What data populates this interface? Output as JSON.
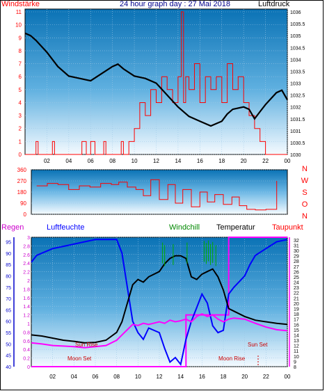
{
  "chart_data": [
    {
      "type": "line",
      "title": "24 hour graph day : 27 Mai 2018",
      "left_label": "Windstärke",
      "right_label": "Luftdruck",
      "x_ticks": [
        "02",
        "04",
        "06",
        "08",
        "10",
        "12",
        "14",
        "16",
        "18",
        "20",
        "22",
        "00"
      ],
      "y_left_ticks": [
        "0",
        "1",
        "2",
        "3",
        "4",
        "5",
        "6",
        "7",
        "8",
        "9",
        "10",
        "11"
      ],
      "y_left_range": [
        0,
        11
      ],
      "y_right_ticks": [
        "1030",
        "1030.5",
        "1031",
        "1031.5",
        "1032",
        "1032.5",
        "1033",
        "1033.5",
        "1034",
        "1034.5",
        "1035",
        "1035.5",
        "1036"
      ],
      "y_right_range": [
        1030,
        1036
      ],
      "grid": true,
      "series": [
        {
          "name": "Luftdruck",
          "color": "#000000",
          "x": [
            0,
            0.5,
            1,
            2,
            3,
            4,
            5,
            6,
            7,
            8,
            8.5,
            9,
            10,
            11,
            12,
            13,
            14,
            15,
            16,
            17,
            18,
            18.5,
            19,
            20,
            20.5,
            21,
            21.5,
            22,
            23,
            23.5,
            24
          ],
          "y": [
            1035.1,
            1035.0,
            1034.8,
            1034.3,
            1033.7,
            1033.3,
            1033.2,
            1033.1,
            1033.4,
            1033.7,
            1033.8,
            1033.6,
            1033.3,
            1033.2,
            1033.0,
            1032.5,
            1032.0,
            1031.6,
            1031.4,
            1031.2,
            1031.4,
            1031.7,
            1031.9,
            1032.0,
            1031.9,
            1031.5,
            1031.8,
            1032.1,
            1032.6,
            1032.7,
            1032.3
          ]
        },
        {
          "name": "Windstärke",
          "color": "#ff0000",
          "style": "step",
          "x": [
            0,
            1,
            1.2,
            2.5,
            2.7,
            5.2,
            5.6,
            6.0,
            6.4,
            7.2,
            7.4,
            8.8,
            9.0,
            9.5,
            10,
            10.5,
            11,
            11.5,
            12,
            12.5,
            13,
            13.5,
            14,
            14.3,
            14.5,
            14.7,
            15,
            15.5,
            16,
            16.5,
            17,
            17.5,
            18,
            18.5,
            19,
            19.5,
            20,
            20.5,
            21,
            21.5,
            22,
            24
          ],
          "y": [
            0,
            1,
            0,
            1,
            0,
            1,
            0,
            1,
            0,
            1,
            0,
            1,
            0,
            1,
            2,
            4,
            3,
            5,
            4,
            6,
            5,
            4,
            6,
            11,
            4,
            6,
            5,
            7,
            4,
            6,
            5,
            6,
            4,
            7,
            5,
            6,
            4,
            3,
            2,
            1,
            0,
            0
          ]
        }
      ]
    },
    {
      "type": "scatter",
      "title": "",
      "series_name": "Windrichtung",
      "y_ticks": [
        "0",
        "90",
        "180",
        "270",
        "360"
      ],
      "y_range": [
        0,
        360
      ],
      "direction_letters": [
        "N",
        "W",
        "S",
        "O",
        "N"
      ],
      "values": [
        {
          "x": 0.5,
          "y": 230
        },
        {
          "x": 1.5,
          "y": 250
        },
        {
          "x": 2.5,
          "y": 240
        },
        {
          "x": 3.5,
          "y": 200
        },
        {
          "x": 4.5,
          "y": 230
        },
        {
          "x": 5.5,
          "y": 220
        },
        {
          "x": 6.5,
          "y": 250
        },
        {
          "x": 7.5,
          "y": 240
        },
        {
          "x": 8.2,
          "y": 260
        },
        {
          "x": 9.0,
          "y": 220
        },
        {
          "x": 9.8,
          "y": 200
        },
        {
          "x": 10.5,
          "y": 150
        },
        {
          "x": 11.2,
          "y": 280
        },
        {
          "x": 12.0,
          "y": 120
        },
        {
          "x": 12.8,
          "y": 240
        },
        {
          "x": 13.5,
          "y": 90
        },
        {
          "x": 14.2,
          "y": 200
        },
        {
          "x": 15.0,
          "y": 60
        },
        {
          "x": 15.8,
          "y": 180
        },
        {
          "x": 16.5,
          "y": 100
        },
        {
          "x": 17.2,
          "y": 160
        },
        {
          "x": 18.0,
          "y": 80
        },
        {
          "x": 18.8,
          "y": 140
        },
        {
          "x": 19.5,
          "y": 70
        },
        {
          "x": 20.2,
          "y": 40
        },
        {
          "x": 21.0,
          "y": 35
        },
        {
          "x": 22.0,
          "y": 40
        },
        {
          "x": 23.0,
          "y": 270
        }
      ]
    },
    {
      "type": "line",
      "title": "",
      "labels": {
        "regen": "Regen",
        "luftfeuchte": "Luftfeuchte",
        "windchill": "Windchill",
        "temperatur": "Temperatur",
        "taupunkt": "Taupunkt"
      },
      "x_ticks": [
        "02",
        "04",
        "06",
        "08",
        "10",
        "12",
        "14",
        "16",
        "18",
        "20",
        "22",
        "00"
      ],
      "y_rain_ticks": [
        "0",
        "0.2",
        "0.4",
        "0.6",
        "0.8",
        "1",
        "1.2",
        "1.4",
        "1.6",
        "1.8",
        "2",
        "2.2",
        "2.4",
        "2.6",
        "2.8",
        "3"
      ],
      "y_rain_range": [
        0,
        3
      ],
      "y_humidity_ticks": [
        "40",
        "45",
        "50",
        "55",
        "60",
        "65",
        "70",
        "75",
        "80",
        "85",
        "90",
        "95"
      ],
      "y_humidity_range": [
        40,
        97
      ],
      "y_temp_ticks": [
        "8",
        "9",
        "10",
        "11",
        "12",
        "13",
        "14",
        "15",
        "16",
        "17",
        "18",
        "19",
        "20",
        "21",
        "22",
        "23",
        "24",
        "25",
        "26",
        "27",
        "28",
        "29",
        "30",
        "31",
        "32"
      ],
      "y_temp_range": [
        8,
        32.5
      ],
      "annotations": [
        "Sun Rise",
        "Moon Set",
        "Moon Rise",
        "Sun Set"
      ],
      "series": [
        {
          "name": "Luftfeuchte",
          "color": "#0000ff",
          "x": [
            0,
            0.5,
            1,
            2,
            3,
            4,
            5,
            6,
            7,
            8,
            8.5,
            9,
            9.5,
            10,
            10.5,
            11,
            12,
            12.5,
            13,
            13.5,
            14,
            14.5,
            15,
            15.5,
            16,
            16.5,
            17,
            17.5,
            18,
            18.5,
            19,
            20,
            20.5,
            21,
            22,
            23,
            24
          ],
          "y": [
            86,
            89,
            90,
            92,
            93,
            94,
            95,
            96,
            96,
            96,
            90,
            75,
            60,
            55,
            52,
            57,
            55,
            48,
            42,
            44,
            41,
            52,
            60,
            66,
            72,
            68,
            58,
            55,
            56,
            72,
            75,
            80,
            85,
            89,
            92,
            95,
            96
          ]
        },
        {
          "name": "Temperatur",
          "color": "#000000",
          "x": [
            0,
            1,
            2,
            3,
            4,
            5,
            6,
            7,
            8,
            8.5,
            9,
            9.5,
            10,
            10.5,
            11,
            12,
            12.5,
            13,
            13.5,
            14,
            14.5,
            15,
            15.5,
            16,
            16.5,
            17,
            17.5,
            18,
            18.5,
            19,
            20,
            21,
            22,
            23,
            24
          ],
          "y": [
            14.0,
            13.8,
            13.4,
            13.0,
            12.8,
            12.5,
            12.6,
            13.0,
            14.5,
            16.5,
            20.0,
            23.5,
            24.5,
            24.0,
            25.0,
            26.0,
            27.5,
            28.5,
            29.0,
            29.0,
            28.5,
            25.0,
            24.5,
            25.5,
            26.0,
            26.5,
            25.0,
            22.5,
            19.0,
            18.5,
            17.5,
            16.8,
            16.5,
            16.2,
            16.0
          ]
        },
        {
          "name": "Taupunkt",
          "color": "#ff00ff",
          "x": [
            0,
            1,
            2,
            3,
            4,
            5,
            6,
            7,
            8,
            8.5,
            9,
            9.5,
            10,
            10.5,
            11,
            12,
            12.5,
            13,
            13.5,
            14,
            14.5,
            15,
            15.5,
            16,
            16.5,
            17,
            17.5,
            18,
            18.5,
            19,
            20,
            21,
            22,
            23,
            24
          ],
          "y": [
            12.5,
            12.3,
            12.0,
            11.9,
            11.8,
            11.6,
            11.8,
            12.0,
            13.0,
            14.0,
            15.0,
            16.0,
            15.8,
            16.2,
            16.0,
            16.5,
            16.2,
            16.8,
            16.5,
            16.7,
            17.0,
            16.5,
            17.5,
            18.0,
            17.5,
            17.8,
            17.0,
            16.5,
            17.0,
            17.2,
            17.0,
            16.2,
            15.5,
            15.0,
            14.8
          ]
        },
        {
          "name": "Windchill",
          "color": "#00aa00",
          "style": "spikes",
          "x": [
            12.3,
            12.5,
            13.3,
            14.6,
            16.2,
            16.4,
            16.6,
            16.8,
            17.0,
            17.3
          ],
          "y": [
            31.5,
            31.0,
            31.2,
            31.5,
            31.8,
            31.4,
            31.9,
            31.2,
            31.6,
            31.0
          ]
        },
        {
          "name": "Regen",
          "color": "#ff00ff",
          "style": "step",
          "x": [
            0,
            14.5,
            14.5,
            18.5,
            18.5,
            20.5,
            20.5,
            24
          ],
          "y": [
            0,
            0,
            1.2,
            1.2,
            3.0,
            3.0,
            3.0,
            3.0
          ]
        }
      ]
    }
  ]
}
